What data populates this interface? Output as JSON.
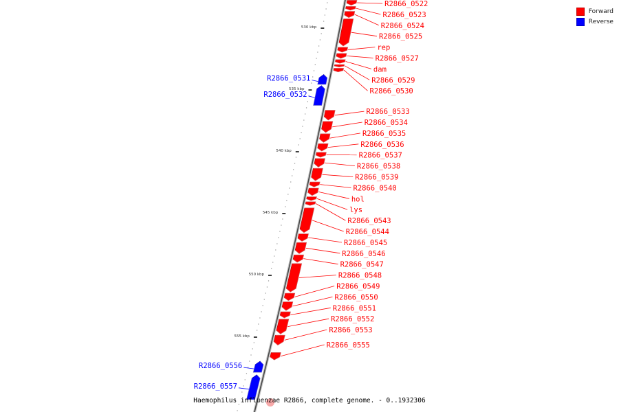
{
  "legend": {
    "forward_label": "Forward",
    "reverse_label": "Reverse",
    "forward_color": "#ff0000",
    "reverse_color": "#0000ff"
  },
  "caption": "Haemophilus influenzae R2866, complete genome. - 0..1932306",
  "ticks": [
    {
      "label": "530 kbp",
      "kbp": 530
    },
    {
      "label": "535 kbp",
      "kbp": 535
    },
    {
      "label": "540 kbp",
      "kbp": 540
    },
    {
      "label": "545 kbp",
      "kbp": 545
    },
    {
      "label": "550 kbp",
      "kbp": 550
    },
    {
      "label": "555 kbp",
      "kbp": 555
    }
  ],
  "genes": [
    {
      "name": "R2866_0522",
      "strand": "forward",
      "start_kbp": 527.8,
      "end_kbp": 528.2
    },
    {
      "name": "R2866_0523",
      "strand": "forward",
      "start_kbp": 528.3,
      "end_kbp": 528.6
    },
    {
      "name": "R2866_0524",
      "strand": "forward",
      "start_kbp": 528.7,
      "end_kbp": 529.2
    },
    {
      "name": "R2866_0525",
      "strand": "forward",
      "start_kbp": 529.3,
      "end_kbp": 531.5
    },
    {
      "name": "rep",
      "strand": "forward",
      "start_kbp": 531.6,
      "end_kbp": 532.0
    },
    {
      "name": "R2866_0527",
      "strand": "forward",
      "start_kbp": 532.1,
      "end_kbp": 532.5
    },
    {
      "name": "dam",
      "strand": "forward",
      "start_kbp": 532.6,
      "end_kbp": 532.9
    },
    {
      "name": "R2866_0529",
      "strand": "forward",
      "start_kbp": 533.0,
      "end_kbp": 533.2
    },
    {
      "name": "R2866_0530",
      "strand": "forward",
      "start_kbp": 533.3,
      "end_kbp": 533.6
    },
    {
      "name": "R2866_0531",
      "strand": "reverse",
      "start_kbp": 533.8,
      "end_kbp": 534.6
    },
    {
      "name": "R2866_0532",
      "strand": "reverse",
      "start_kbp": 534.7,
      "end_kbp": 536.3
    },
    {
      "name": "R2866_0533",
      "strand": "forward",
      "start_kbp": 536.7,
      "end_kbp": 537.5
    },
    {
      "name": "R2866_0534",
      "strand": "forward",
      "start_kbp": 537.6,
      "end_kbp": 538.5
    },
    {
      "name": "R2866_0535",
      "strand": "forward",
      "start_kbp": 538.6,
      "end_kbp": 539.3
    },
    {
      "name": "R2866_0536",
      "strand": "forward",
      "start_kbp": 539.4,
      "end_kbp": 540.0
    },
    {
      "name": "R2866_0537",
      "strand": "forward",
      "start_kbp": 540.1,
      "end_kbp": 540.5
    },
    {
      "name": "R2866_0538",
      "strand": "forward",
      "start_kbp": 540.6,
      "end_kbp": 541.3
    },
    {
      "name": "R2866_0539",
      "strand": "forward",
      "start_kbp": 541.4,
      "end_kbp": 542.4
    },
    {
      "name": "R2866_0540",
      "strand": "forward",
      "start_kbp": 542.5,
      "end_kbp": 542.9
    },
    {
      "name": "hol",
      "strand": "forward",
      "start_kbp": 543.0,
      "end_kbp": 543.6
    },
    {
      "name": "lys",
      "strand": "forward",
      "start_kbp": 543.7,
      "end_kbp": 544.0
    },
    {
      "name": "R2866_0543",
      "strand": "forward",
      "start_kbp": 544.1,
      "end_kbp": 544.4
    },
    {
      "name": "R2866_0544",
      "strand": "forward",
      "start_kbp": 544.6,
      "end_kbp": 546.6
    },
    {
      "name": "R2866_0545",
      "strand": "forward",
      "start_kbp": 546.7,
      "end_kbp": 547.3
    },
    {
      "name": "R2866_0546",
      "strand": "forward",
      "start_kbp": 547.4,
      "end_kbp": 548.3
    },
    {
      "name": "R2866_0547",
      "strand": "forward",
      "start_kbp": 548.4,
      "end_kbp": 549.0
    },
    {
      "name": "R2866_0548",
      "strand": "forward",
      "start_kbp": 549.1,
      "end_kbp": 551.4
    },
    {
      "name": "R2866_0549",
      "strand": "forward",
      "start_kbp": 551.5,
      "end_kbp": 552.1
    },
    {
      "name": "R2866_0550",
      "strand": "forward",
      "start_kbp": 552.2,
      "end_kbp": 552.9
    },
    {
      "name": "R2866_0551",
      "strand": "forward",
      "start_kbp": 553.0,
      "end_kbp": 553.5
    },
    {
      "name": "R2866_0552",
      "strand": "forward",
      "start_kbp": 553.6,
      "end_kbp": 554.8
    },
    {
      "name": "R2866_0553",
      "strand": "forward",
      "start_kbp": 554.9,
      "end_kbp": 555.7
    },
    {
      "name": "R2866_0555",
      "strand": "forward",
      "start_kbp": 556.3,
      "end_kbp": 556.9
    },
    {
      "name": "R2866_0556",
      "strand": "reverse",
      "start_kbp": 557.0,
      "end_kbp": 557.9
    },
    {
      "name": "R2866_0557",
      "strand": "reverse",
      "start_kbp": 558.1,
      "end_kbp": 560.1
    }
  ]
}
